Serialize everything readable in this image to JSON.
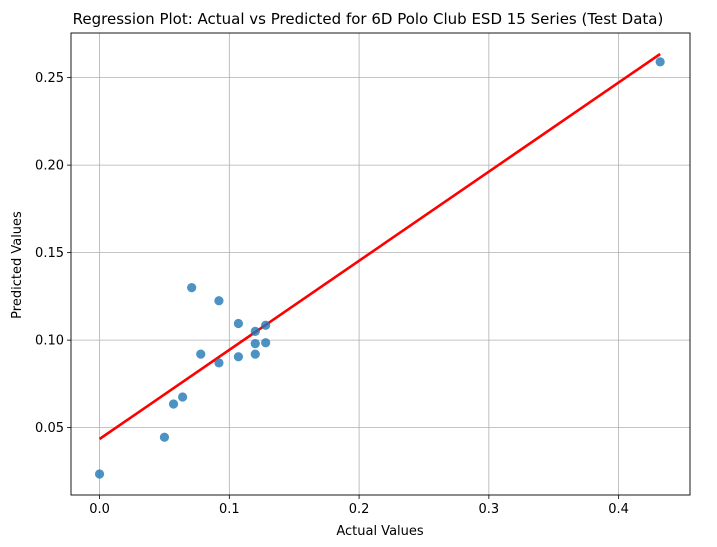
{
  "chart_data": {
    "type": "scatter",
    "title": "Regression Plot: Actual vs Predicted for 6D Polo Club ESD 15 Series (Test Data)",
    "xlabel": "Actual Values",
    "ylabel": "Predicted Values",
    "xlim": [
      -0.022,
      0.455
    ],
    "ylim": [
      0.0115,
      0.2755
    ],
    "xticks": [
      0.0,
      0.1,
      0.2,
      0.3,
      0.4
    ],
    "xtick_labels": [
      "0.0",
      "0.1",
      "0.2",
      "0.3",
      "0.4"
    ],
    "yticks": [
      0.05,
      0.1,
      0.15,
      0.2,
      0.25
    ],
    "ytick_labels": [
      "0.05",
      "0.10",
      "0.15",
      "0.20",
      "0.25"
    ],
    "grid": true,
    "points": {
      "color": "#1f77b4",
      "x": [
        0.0,
        0.05,
        0.057,
        0.064,
        0.071,
        0.078,
        0.092,
        0.092,
        0.107,
        0.107,
        0.12,
        0.12,
        0.12,
        0.128,
        0.128,
        0.432
      ],
      "y": [
        0.0235,
        0.0445,
        0.0635,
        0.0675,
        0.13,
        0.092,
        0.087,
        0.1225,
        0.1095,
        0.0905,
        0.105,
        0.098,
        0.092,
        0.1085,
        0.0985,
        0.259
      ]
    },
    "regression_line": {
      "color": "#ff0000",
      "x": [
        0.0,
        0.432
      ],
      "y": [
        0.0435,
        0.2635
      ]
    }
  }
}
